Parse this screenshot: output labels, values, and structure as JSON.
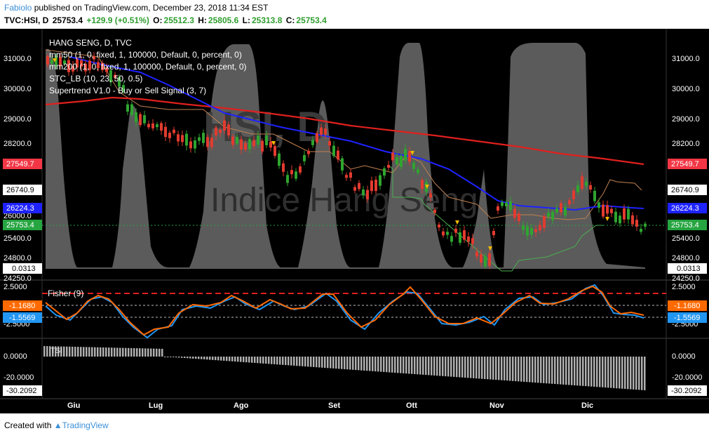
{
  "header": {
    "user": "Fabiolo",
    "published_text": "published on TradingView.com, December 23, 2018 11:34 EST",
    "symbol": "TVC:HSI, D",
    "last": "25753.4",
    "change": "+129.9 (+0.51%)",
    "open_label": "O:",
    "open": "25512.3",
    "high_label": "H:",
    "high": "25805.6",
    "low_label": "L:",
    "low": "25313.8",
    "close_label": "C:",
    "close": "25753.4"
  },
  "legend": {
    "title": "HANG SENG, D, TVC",
    "ma50": "mm50 (1, 0, fixed, 1, 100000, Default, 0, percent, 0)",
    "ma200": "mm200 (1, 0, fixed, 1, 100000, Default, 0, percent, 0)",
    "stc": "STC_LB (10, 23, 50, 0.5)",
    "supertrend": "Supertrend V1.0 - Buy or Sell Signal (3, 7)"
  },
  "watermark": {
    "symbol": "HSI, D",
    "name": "Indice Hang Seng"
  },
  "price_axis": {
    "ticks": [
      "31000.0",
      "30000.0",
      "29000.0",
      "28200.0",
      "26000.0",
      "25400.0",
      "24800.0",
      "24250.0"
    ],
    "tags": {
      "supertrend": {
        "text": "27549.7",
        "color": "#f23645"
      },
      "stop": {
        "text": "26740.9",
        "color": "#ffffff"
      },
      "ma50": {
        "text": "26224.3",
        "color": "#1e22ff"
      },
      "last": {
        "text": "25753.4",
        "color": "#26a541"
      },
      "stc": {
        "text": "0.0313",
        "color": "#ffffff"
      }
    }
  },
  "fisher": {
    "label": "Fisher (9)",
    "ticks": [
      "2.5000",
      "-2.5000"
    ],
    "tags": {
      "fisher": {
        "text": "-1.1680",
        "color": "#ff6a00"
      },
      "trigger": {
        "text": "-1.5569",
        "color": "#2196f3"
      }
    }
  },
  "histogram": {
    "label": "TSI",
    "ticks": [
      "0.0000",
      "-20.0000"
    ],
    "tag": {
      "text": "-30.2092",
      "color": "#ffffff"
    }
  },
  "time_axis": {
    "labels": [
      "Giu",
      "Lug",
      "Ago",
      "Set",
      "Ott",
      "Nov",
      "Dic"
    ]
  },
  "footer": {
    "created_with": "Created with",
    "brand": "TradingView"
  },
  "colors": {
    "ma200": "#e0201e",
    "ma50": "#1e22ff",
    "bull": "#2fa52f",
    "bear": "#e23b2f",
    "stc_fill": "#6b6b6b",
    "fisher_line": "#ff6a00",
    "trigger_line": "#2196f3"
  }
}
